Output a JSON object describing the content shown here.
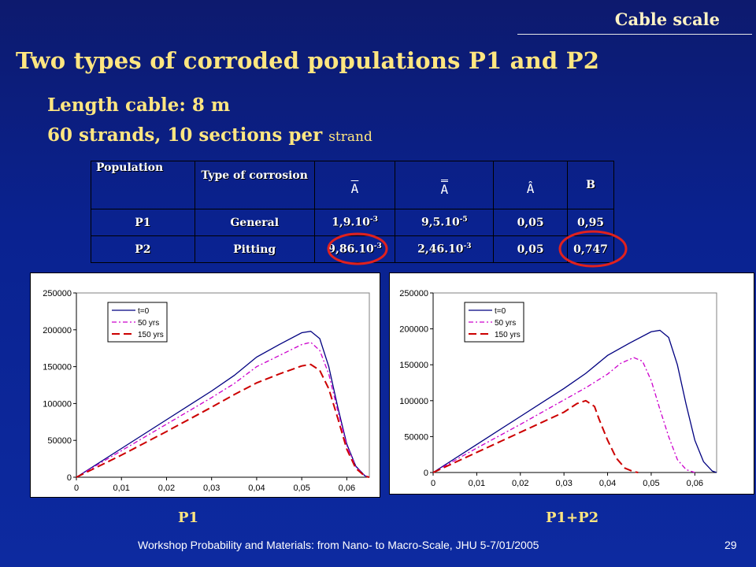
{
  "header": {
    "section_label": "Cable scale"
  },
  "title": "Two types of corroded populations P1 and P2",
  "subtitle": {
    "line1": "Length cable:  8 m",
    "line2_main": "60 strands, 10 sections per ",
    "line2_small": "strand"
  },
  "table": {
    "headers": [
      "Population",
      "Type of corrosion",
      "A",
      "A",
      "Â",
      "B"
    ],
    "rows": [
      {
        "population": "P1",
        "type": "General",
        "a_mant": "1,9.10",
        "a_exp": "-3",
        "aa_mant": "9,5.10",
        "aa_exp": "-5",
        "ahat": "0,05",
        "b": "0,95"
      },
      {
        "population": "P2",
        "type": "Pitting",
        "a_mant": "9,86.10",
        "a_exp": "-3",
        "aa_mant": "2,46.10",
        "aa_exp": "-3",
        "ahat": "0,05",
        "b": "0,747"
      }
    ],
    "highlight_color": "#e0211e"
  },
  "charts": {
    "captions": [
      "P1",
      "P1+P2"
    ]
  },
  "chart_data": [
    {
      "type": "line",
      "xlim": [
        0,
        0.065
      ],
      "ylim": [
        0,
        250000
      ],
      "xticks": [
        "0",
        "0,01",
        "0,02",
        "0,03",
        "0,04",
        "0,05",
        "0,06"
      ],
      "yticks": [
        "0",
        "50000",
        "100000",
        "150000",
        "200000",
        "250000"
      ],
      "series": [
        {
          "name": "t=0",
          "color": "#000080",
          "dash": "",
          "points": [
            [
              0,
              0
            ],
            [
              0.01,
              39000
            ],
            [
              0.02,
              78000
            ],
            [
              0.03,
              117000
            ],
            [
              0.035,
              138000
            ],
            [
              0.04,
              163000
            ],
            [
              0.045,
              180000
            ],
            [
              0.05,
              196000
            ],
            [
              0.052,
              198000
            ],
            [
              0.054,
              188000
            ],
            [
              0.056,
              150000
            ],
            [
              0.058,
              95000
            ],
            [
              0.06,
              45000
            ],
            [
              0.062,
              15000
            ],
            [
              0.064,
              2000
            ],
            [
              0.065,
              0
            ]
          ]
        },
        {
          "name": "50 yrs",
          "color": "#cc00cc",
          "dash": "6,3,2,3",
          "points": [
            [
              0,
              0
            ],
            [
              0.01,
              36000
            ],
            [
              0.02,
              72000
            ],
            [
              0.03,
              108000
            ],
            [
              0.035,
              127000
            ],
            [
              0.04,
              150000
            ],
            [
              0.045,
              165000
            ],
            [
              0.05,
              180000
            ],
            [
              0.052,
              183000
            ],
            [
              0.054,
              172000
            ],
            [
              0.056,
              140000
            ],
            [
              0.058,
              90000
            ],
            [
              0.06,
              43000
            ],
            [
              0.062,
              14000
            ],
            [
              0.064,
              2000
            ],
            [
              0.065,
              0
            ]
          ]
        },
        {
          "name": "150 yrs",
          "color": "#cc0000",
          "dash": "10,5",
          "points": [
            [
              0,
              0
            ],
            [
              0.01,
              30000
            ],
            [
              0.02,
              62000
            ],
            [
              0.03,
              95000
            ],
            [
              0.035,
              112000
            ],
            [
              0.04,
              128000
            ],
            [
              0.045,
              140000
            ],
            [
              0.05,
              151000
            ],
            [
              0.052,
              153000
            ],
            [
              0.054,
              145000
            ],
            [
              0.056,
              120000
            ],
            [
              0.058,
              80000
            ],
            [
              0.06,
              38000
            ],
            [
              0.062,
              12000
            ],
            [
              0.064,
              1500
            ],
            [
              0.065,
              0
            ]
          ]
        }
      ]
    },
    {
      "type": "line",
      "xlim": [
        0,
        0.065
      ],
      "ylim": [
        0,
        250000
      ],
      "xticks": [
        "0",
        "0,01",
        "0,02",
        "0,03",
        "0,04",
        "0,05",
        "0,06"
      ],
      "yticks": [
        "0",
        "50000",
        "100000",
        "150000",
        "200000",
        "250000"
      ],
      "series": [
        {
          "name": "t=0",
          "color": "#000080",
          "dash": "",
          "points": [
            [
              0,
              0
            ],
            [
              0.01,
              39000
            ],
            [
              0.02,
              78000
            ],
            [
              0.03,
              117000
            ],
            [
              0.035,
              138000
            ],
            [
              0.04,
              163000
            ],
            [
              0.045,
              180000
            ],
            [
              0.05,
              196000
            ],
            [
              0.052,
              198000
            ],
            [
              0.054,
              188000
            ],
            [
              0.056,
              150000
            ],
            [
              0.058,
              95000
            ],
            [
              0.06,
              45000
            ],
            [
              0.062,
              15000
            ],
            [
              0.064,
              2000
            ],
            [
              0.065,
              0
            ]
          ]
        },
        {
          "name": "50 yrs",
          "color": "#cc00cc",
          "dash": "6,3,2,3",
          "points": [
            [
              0,
              0
            ],
            [
              0.01,
              34000
            ],
            [
              0.02,
              67000
            ],
            [
              0.03,
              101000
            ],
            [
              0.035,
              118000
            ],
            [
              0.04,
              137000
            ],
            [
              0.043,
              152000
            ],
            [
              0.046,
              160000
            ],
            [
              0.048,
              155000
            ],
            [
              0.05,
              128000
            ],
            [
              0.052,
              88000
            ],
            [
              0.054,
              50000
            ],
            [
              0.056,
              18000
            ],
            [
              0.058,
              4000
            ],
            [
              0.06,
              0
            ]
          ]
        },
        {
          "name": "150 yrs",
          "color": "#cc0000",
          "dash": "10,5",
          "points": [
            [
              0,
              0
            ],
            [
              0.01,
              28000
            ],
            [
              0.02,
              56000
            ],
            [
              0.025,
              70000
            ],
            [
              0.03,
              84000
            ],
            [
              0.033,
              96000
            ],
            [
              0.035,
              100000
            ],
            [
              0.037,
              92000
            ],
            [
              0.038,
              75000
            ],
            [
              0.04,
              45000
            ],
            [
              0.042,
              20000
            ],
            [
              0.044,
              6000
            ],
            [
              0.046,
              1000
            ],
            [
              0.047,
              0
            ]
          ]
        }
      ]
    }
  ]
}
